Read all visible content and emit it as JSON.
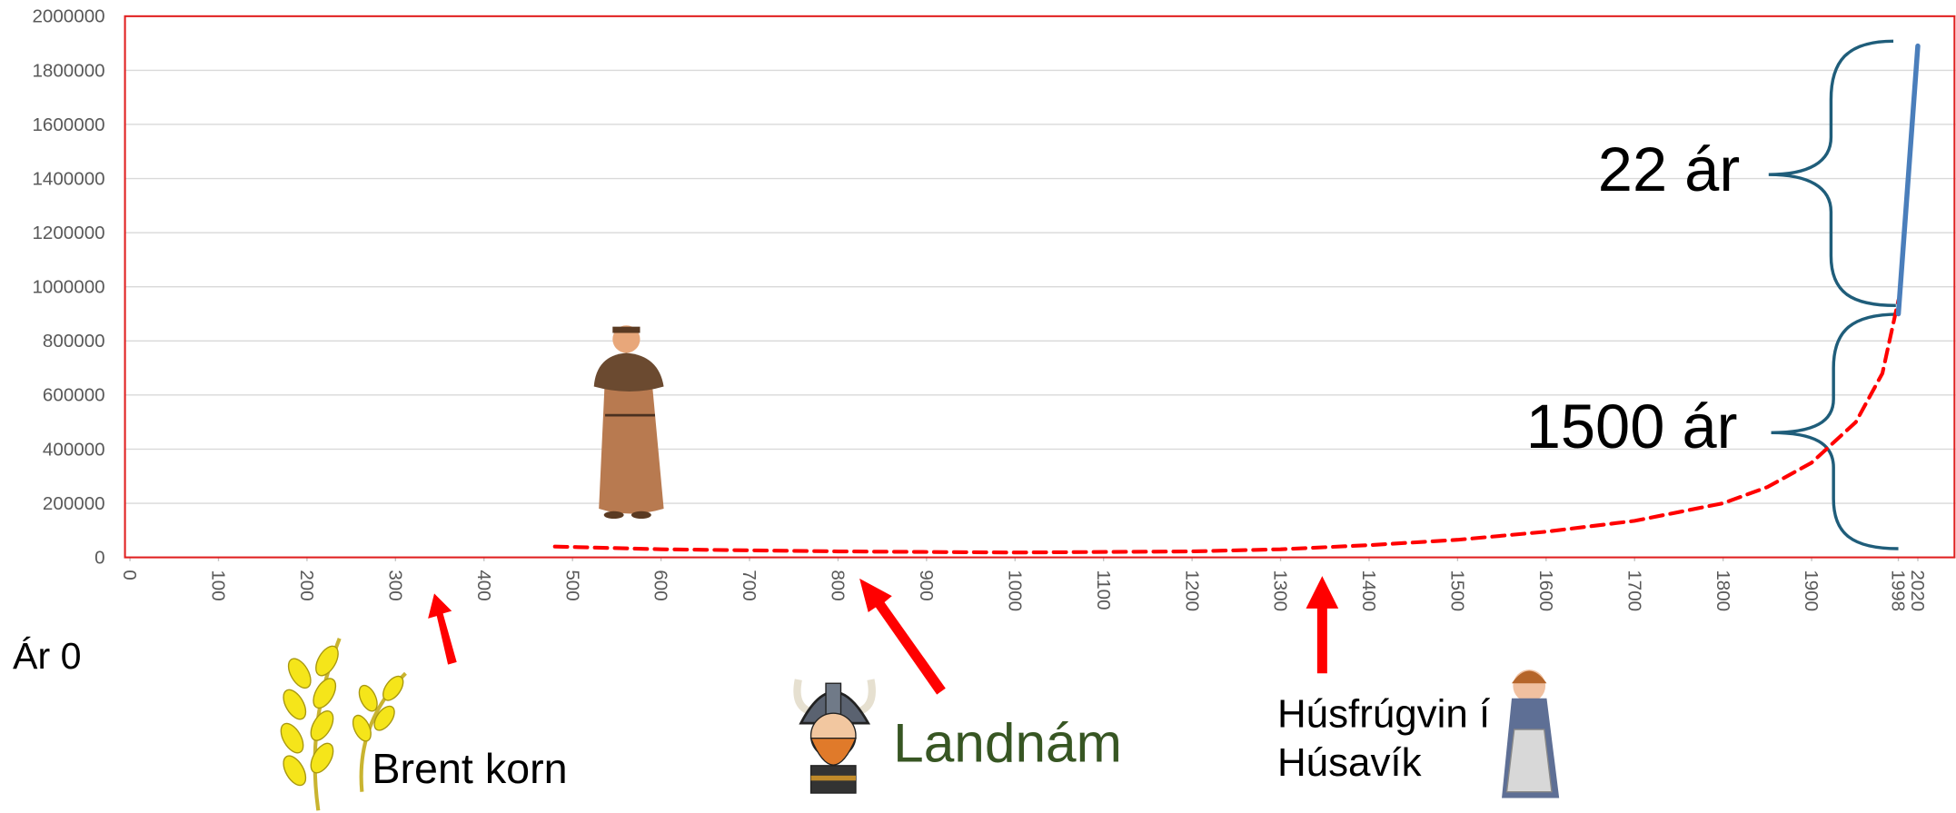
{
  "chart_data": {
    "type": "line",
    "annotations": [
      "22 ár",
      "1500 ár",
      "Ár 0",
      "Brent korn",
      "Landnám",
      "Húsfrúgvin í",
      "Húsavík"
    ],
    "series": [
      {
        "color": "#ff0000",
        "dashed": true,
        "x": [
          480,
          600,
          800,
          1000,
          1200,
          1300,
          1400,
          1500,
          1600,
          1700,
          1800,
          1850,
          1900,
          1950,
          1980,
          1998
        ],
        "values": [
          40000,
          30000,
          22000,
          18000,
          22000,
          30000,
          45000,
          65000,
          95000,
          135000,
          200000,
          260000,
          350000,
          500000,
          680000,
          950000
        ]
      },
      {
        "color": "#4a7ebb",
        "dashed": false,
        "x": [
          1998,
          2020
        ],
        "values": [
          900000,
          1890000
        ]
      }
    ],
    "xlim": [
      0,
      2060
    ],
    "xticks": [
      0,
      100,
      200,
      300,
      400,
      500,
      600,
      700,
      800,
      900,
      1000,
      1100,
      1200,
      1300,
      1400,
      1500,
      1600,
      1700,
      1800,
      1900,
      1998,
      2020
    ],
    "ylim": [
      0,
      2000000
    ],
    "yticks": [
      0,
      200000,
      400000,
      600000,
      800000,
      1000000,
      1200000,
      1400000,
      1600000,
      1800000,
      2000000
    ],
    "grid": true,
    "plot_border_color": "#e02020"
  }
}
